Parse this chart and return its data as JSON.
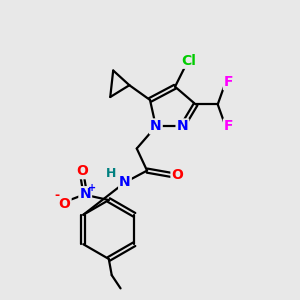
{
  "background_color": "#e8e8e8",
  "bond_color": "#000000",
  "atom_colors": {
    "N": "#0000ff",
    "O": "#ff0000",
    "Cl": "#00cc00",
    "F": "#ff00ff",
    "H": "#008080",
    "C": "#000000"
  },
  "figsize": [
    3.0,
    3.0
  ],
  "dpi": 100
}
